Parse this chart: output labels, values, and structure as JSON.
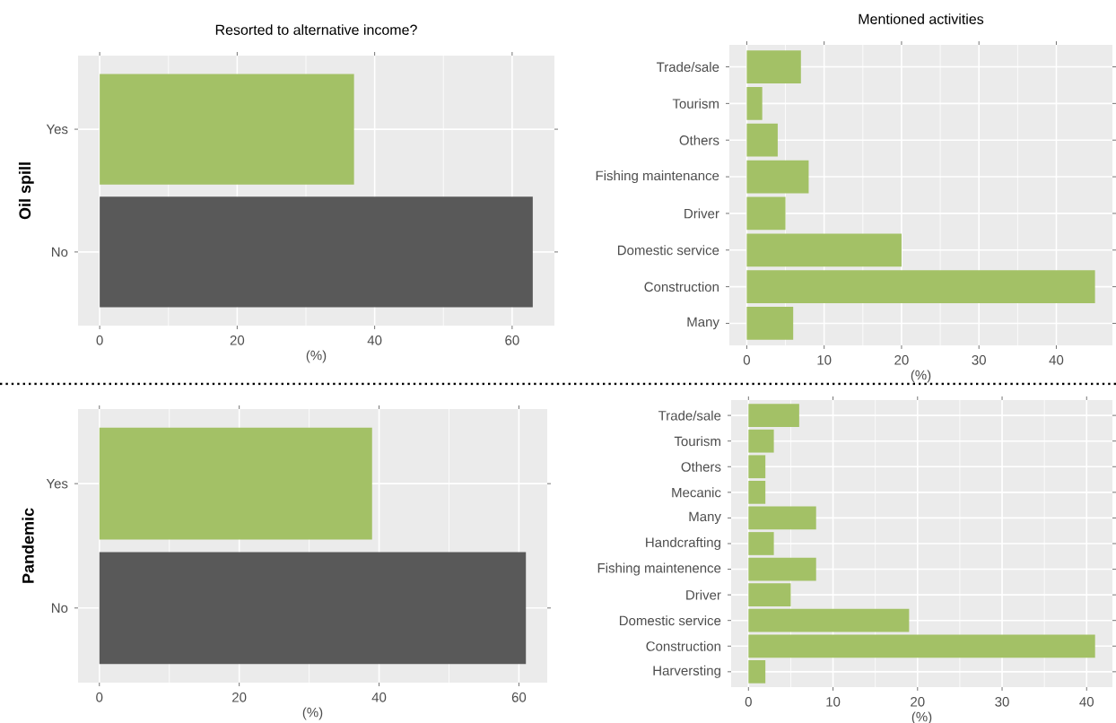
{
  "chart_data": [
    {
      "type": "bar",
      "orientation": "horizontal",
      "title": "Resorted to alternative income?",
      "ylabel": "**Oil spill**",
      "xlabel": "(%)",
      "categories": [
        "Yes",
        "No"
      ],
      "values": [
        37,
        63
      ],
      "colors": [
        "#a3c166",
        "#595959"
      ],
      "xlim": [
        -3.15,
        66.15
      ],
      "xticks": [
        0,
        20,
        40,
        60
      ],
      "grid": true
    },
    {
      "type": "bar",
      "orientation": "horizontal",
      "title": "Mentioned activities",
      "xlabel": "(%)",
      "categories": [
        "Trade/sale",
        "Tourism",
        "Others",
        "Fishing maintenance",
        "Driver",
        "Domestic service",
        "Construction",
        "Many"
      ],
      "values": [
        7,
        2,
        4,
        8,
        5,
        20,
        45,
        6
      ],
      "color": "#a3c166",
      "xlim": [
        -2.25,
        47.25
      ],
      "xticks": [
        0,
        10,
        20,
        30,
        40
      ],
      "grid": true
    },
    {
      "type": "bar",
      "orientation": "horizontal",
      "ylabel": "**Pandemic**",
      "xlabel": "(%)",
      "categories": [
        "Yes",
        "No"
      ],
      "values": [
        39,
        61
      ],
      "colors": [
        "#a3c166",
        "#595959"
      ],
      "xlim": [
        -3.05,
        64.05
      ],
      "xticks": [
        0,
        20,
        40,
        60
      ],
      "grid": true
    },
    {
      "type": "bar",
      "orientation": "horizontal",
      "xlabel": "(%)",
      "categories": [
        "Trade/sale",
        "Tourism",
        "Others",
        "Mecanic",
        "Many",
        "Handcrafting",
        "Fishing maintenence",
        "Driver",
        "Domestic service",
        "Construction",
        "Harversting"
      ],
      "values": [
        6,
        3,
        2,
        2,
        8,
        3,
        8,
        5,
        19,
        41,
        2
      ],
      "color": "#a3c166",
      "xlim": [
        -2.05,
        43.05
      ],
      "xticks": [
        0,
        10,
        20,
        30,
        40
      ],
      "grid": true
    }
  ]
}
